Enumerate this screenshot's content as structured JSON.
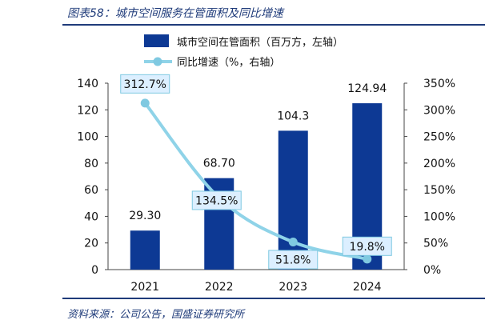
{
  "header": {
    "title": "图表58：城市空间服务在管面积及同比增速"
  },
  "footer": {
    "source": "资料来源：公司公告，国盛证券研究所"
  },
  "colors": {
    "bar": "#0d3994",
    "line": "#8fd3e8",
    "marker": "#7fc9e1",
    "label_bg": "#dcefff",
    "label_border": "#7fc9e1"
  },
  "chart_data": {
    "type": "bar",
    "categories": [
      "2021",
      "2022",
      "2023",
      "2024"
    ],
    "series": [
      {
        "name": "城市空间在管面积（百万方，左轴）",
        "type": "bar",
        "axis": "left",
        "values": [
          29.3,
          68.7,
          104.3,
          124.94
        ],
        "labels": [
          "29.30",
          "68.70",
          "104.3",
          "124.94"
        ]
      },
      {
        "name": "同比增速（%，右轴）",
        "type": "line",
        "axis": "right",
        "values": [
          312.7,
          134.5,
          51.8,
          19.8
        ],
        "labels": [
          "312.7%",
          "134.5%",
          "51.8%",
          "19.8%"
        ]
      }
    ],
    "y_left": {
      "min": 0,
      "max": 140,
      "ticks": [
        "0",
        "20",
        "40",
        "60",
        "80",
        "100",
        "120",
        "140"
      ]
    },
    "y_right": {
      "min": 0,
      "max": 350,
      "ticks": [
        "0%",
        "50%",
        "100%",
        "150%",
        "200%",
        "250%",
        "300%",
        "350%"
      ]
    },
    "legend": "top",
    "grid": false
  }
}
